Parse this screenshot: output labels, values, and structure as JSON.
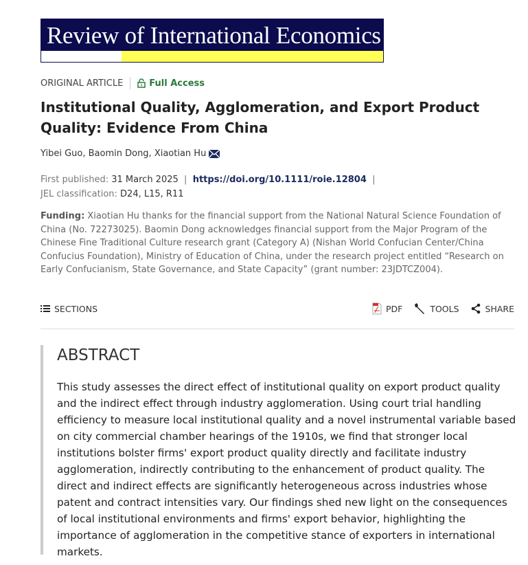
{
  "journal": {
    "title": "Review of International Economics",
    "colors": {
      "navy": "#0b0b4e",
      "yellow": "#ffff55"
    }
  },
  "article": {
    "type": "ORIGINAL ARTICLE",
    "access": "Full Access",
    "title": "Institutional Quality, Agglomeration, and Export Product Quality: Evidence From China",
    "authors": "Yibei Guo, Baomin Dong, Xiaotian Hu",
    "first_published_label": "First published:",
    "first_published": "31 March 2025",
    "doi": "https://doi.org/10.1111/roie.12804",
    "jel_label": "JEL classification:",
    "jel": "D24, L15, R11",
    "funding_label": "Funding:",
    "funding": "Xiaotian Hu thanks for the financial support from the National Natural Science Foundation of China (No. 72273025). Baomin Dong acknowledges financial support from the Major Program of the Chinese Fine Traditional Culture research grant (Category A) (Nishan World Confucian Center/China Confucius Foundation), Ministry of Education of China, under the research project entitled “Research on Early Confucianism, State Governance, and State Capacity” (grant number: 23JDTCZ004)."
  },
  "toolbar": {
    "sections": "SECTIONS",
    "pdf": "PDF",
    "tools": "TOOLS",
    "share": "SHARE"
  },
  "abstract": {
    "heading": "ABSTRACT",
    "text": "This study assesses the direct effect of institutional quality on export product quality and the indirect effect through industry agglomeration. Using court trial handling efficiency to measure local institutional quality and a novel instrumental variable based on city commercial chamber hearings of the 1910s, we find that stronger local institutions bolster firms' export product quality directly and facilitate industry agglomeration, indirectly contributing to the enhancement of product quality. The direct and indirect effects are significantly heterogeneous across industries whose patent and contract intensities vary. Our findings shed new light on the consequences of local institutional environments and firms' export behavior, highlighting the importance of agglomeration in the competitive stance of exporters in international markets."
  }
}
